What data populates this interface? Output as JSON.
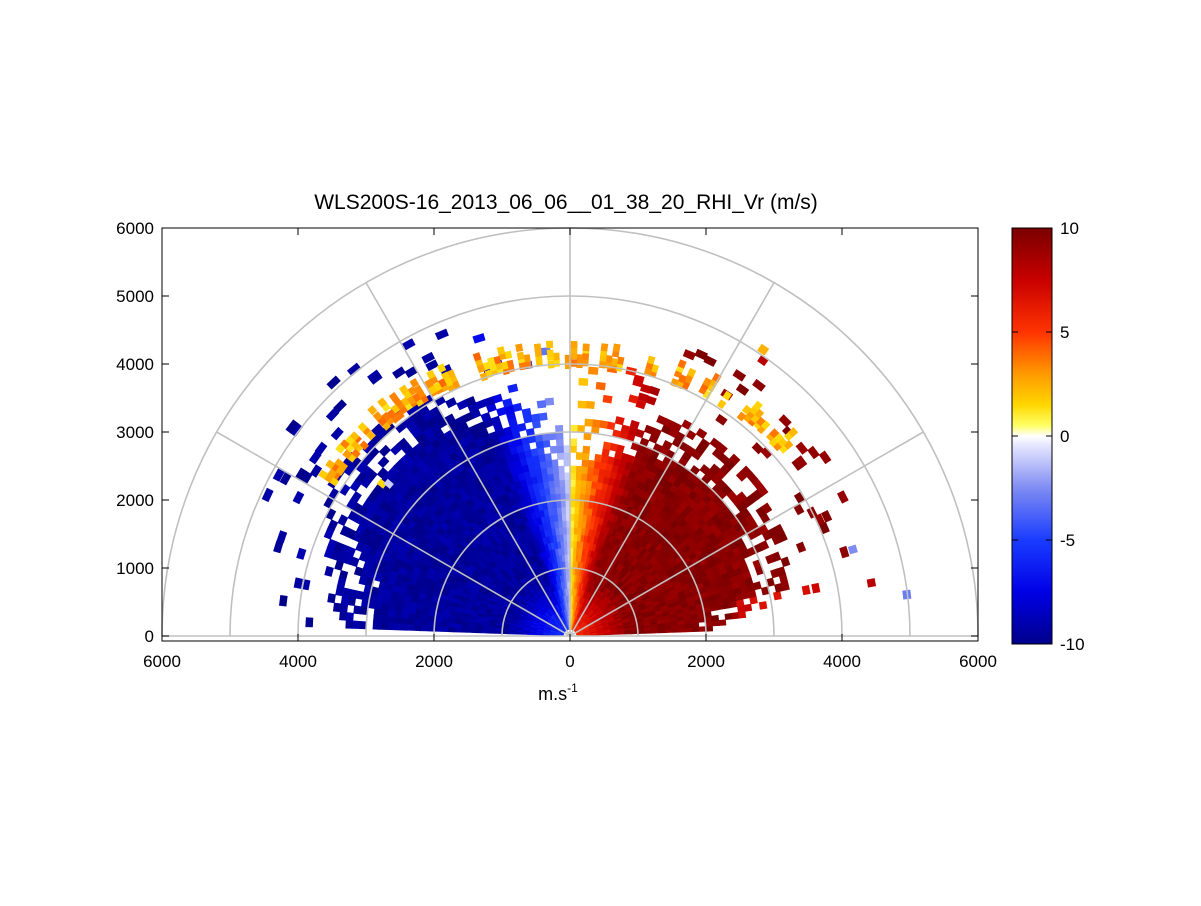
{
  "chart_data": {
    "type": "heatmap",
    "subtype": "polar-rhi-sector",
    "title": "WLS200S-16_2013_06_06__01_38_20_RHI_Vr (m/s)",
    "xlabel": "m.s",
    "xlabel_superscript": "-1",
    "ylabel": "",
    "xlim": [
      -6000,
      6000
    ],
    "ylim": [
      0,
      6000
    ],
    "x_tick_labels": [
      "6000",
      "4000",
      "2000",
      "0",
      "2000",
      "4000",
      "6000"
    ],
    "y_tick_labels": [
      "0",
      "1000",
      "2000",
      "3000",
      "4000",
      "5000",
      "6000"
    ],
    "grid": "polar",
    "polar_grid": {
      "ring_radii": [
        1000,
        2000,
        3000,
        4000,
        5000,
        6000
      ],
      "spoke_angles_deg": [
        0,
        30,
        60,
        90,
        120,
        150,
        180
      ]
    },
    "colorbar": {
      "location": "right",
      "min": -10,
      "max": 10,
      "tick_labels": [
        "10",
        "5",
        "0",
        "-5",
        "-10"
      ],
      "tick_values": [
        10,
        5,
        0,
        -5,
        -10
      ],
      "colormap": "blue-white-yellow-red",
      "stops": [
        {
          "v": -10,
          "c": "#00008b"
        },
        {
          "v": -7.5,
          "c": "#0000e6"
        },
        {
          "v": -5,
          "c": "#1a3cff"
        },
        {
          "v": -2.5,
          "c": "#7f8cf2"
        },
        {
          "v": -0.4,
          "c": "#e8e8ff"
        },
        {
          "v": 0,
          "c": "#ffffff"
        },
        {
          "v": 0.5,
          "c": "#ffff66"
        },
        {
          "v": 1.5,
          "c": "#ffd700"
        },
        {
          "v": 3,
          "c": "#ff9900"
        },
        {
          "v": 5,
          "c": "#ff3300"
        },
        {
          "v": 7.5,
          "c": "#c80000"
        },
        {
          "v": 10,
          "c": "#7a0000"
        }
      ]
    },
    "field_regions": [
      {
        "name": "upper layer",
        "angle_deg": [
          36,
          148
        ],
        "range_m": [
          4100,
          4400
        ],
        "velocity_ms": 2.5
      },
      {
        "name": "negative lobe",
        "angle_deg": [
          90,
          176
        ],
        "range_m": [
          150,
          3800
        ],
        "velocity_ms": -8
      },
      {
        "name": "positive lobe",
        "angle_deg": [
          4,
          90
        ],
        "range_m": [
          150,
          3400
        ],
        "velocity_ms": 8
      }
    ]
  }
}
